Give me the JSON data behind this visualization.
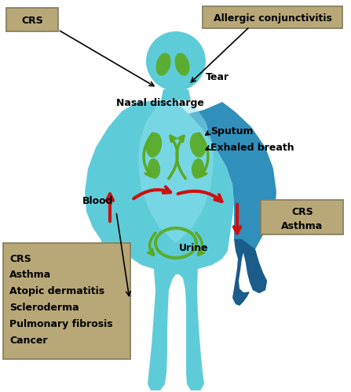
{
  "figsize": [
    4.47,
    5.0
  ],
  "dpi": 100,
  "bg_color": "#ffffff",
  "body_light": "#7dd8e8",
  "body_mid": "#4bb8cc",
  "body_dark": "#2a7aaa",
  "body_right_arm": "#1e5f8e",
  "green_color": "#5aaa20",
  "red_color": "#cc1111",
  "box_color": "#b8a878",
  "box_edge_color": "#888060",
  "black": "#000000",
  "labels": {
    "CRS_top": "CRS",
    "Allergic": "Allergic conjunctivitis",
    "Tear": "Tear",
    "NasalDischarge": "Nasal discharge",
    "Sputum": "Sputum",
    "Exhaled": "Exhaled breath",
    "Blood": "Blood",
    "Urine": "Urine",
    "big_box_lines": [
      "CRS",
      "Asthma",
      "Atopic dermatitis",
      "Scleroderma",
      "Pulmonary fibrosis",
      "Cancer"
    ],
    "CRS_asthma_lines": [
      "CRS",
      "Asthma"
    ]
  }
}
